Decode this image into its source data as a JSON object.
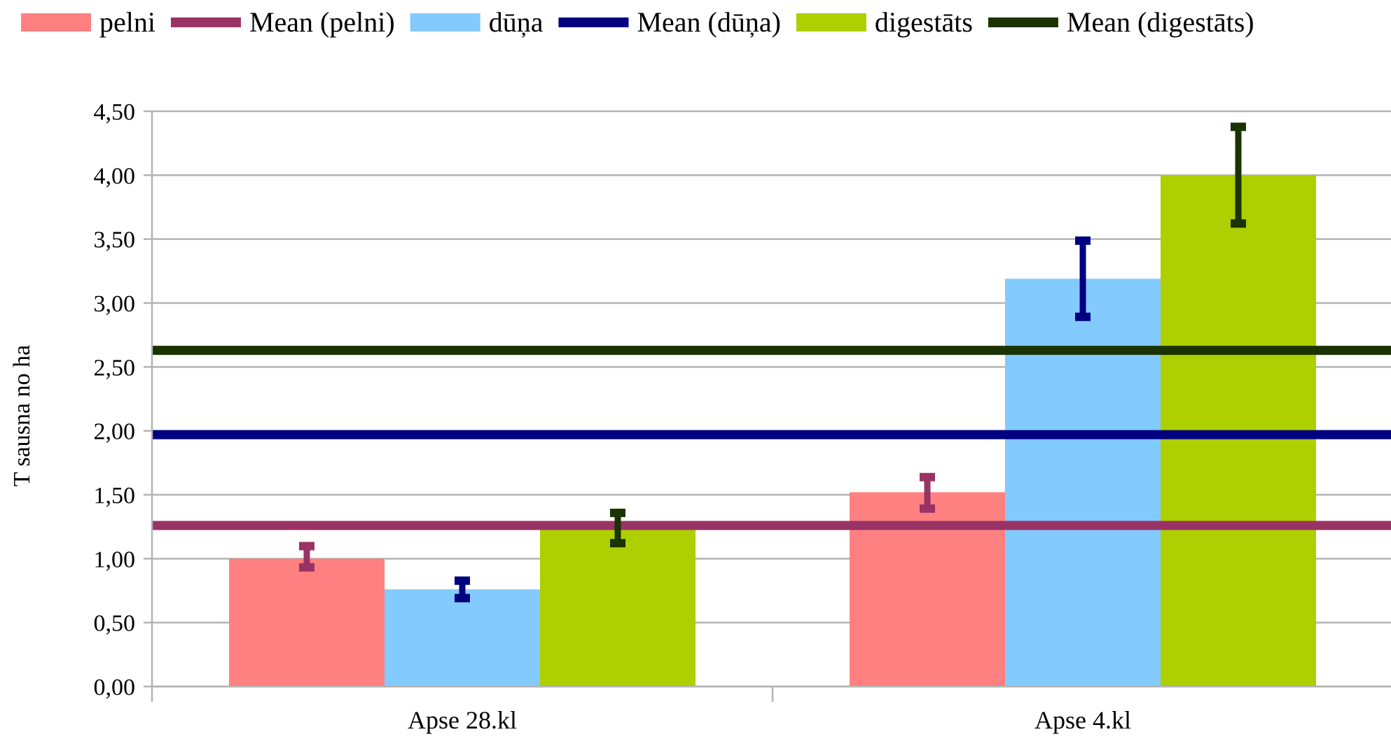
{
  "chart_data": {
    "type": "bar",
    "title": "",
    "xlabel": "",
    "ylabel": "T sausna no ha",
    "ylim": [
      0,
      4.5
    ],
    "y_ticks": [
      "0,00",
      "0,50",
      "1,00",
      "1,50",
      "2,00",
      "2,50",
      "3,00",
      "3,50",
      "4,00",
      "4,50"
    ],
    "grid": true,
    "legend_position": "top",
    "categories": [
      "Apse 28.kl",
      "Apse 4.kl"
    ],
    "series": [
      {
        "name": "pelni",
        "color": "#ff8080",
        "values": [
          1.0,
          1.52
        ],
        "error_low": [
          0.91,
          1.37
        ],
        "error_high": [
          1.12,
          1.66
        ],
        "error_color": "#993366",
        "mean_name": "Mean (pelni)",
        "mean_value": 1.26,
        "mean_color": "#993366"
      },
      {
        "name": "dūņa",
        "color": "#83caff",
        "values": [
          0.76,
          3.19
        ],
        "error_low": [
          0.67,
          2.87
        ],
        "error_high": [
          0.85,
          3.51
        ],
        "error_color": "#000080",
        "mean_name": "Mean (dūņa)",
        "mean_value": 1.97,
        "mean_color": "#000080"
      },
      {
        "name": "digestāts",
        "color": "#aecf00",
        "values": [
          1.24,
          4.0
        ],
        "error_low": [
          1.1,
          3.6
        ],
        "error_high": [
          1.38,
          4.4
        ],
        "error_color": "#1a3300",
        "mean_name": "Mean (digestāts)",
        "mean_value": 2.63,
        "mean_color": "#1a3300"
      }
    ]
  }
}
